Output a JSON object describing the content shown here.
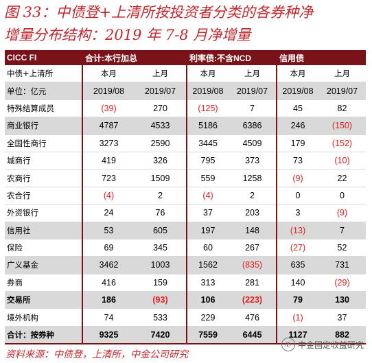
{
  "figure": {
    "title_line1": "图 33：中债登+上清所按投资者分类的各券种净",
    "title_line2": "增量分布结构：2019 年 7-8 月净增量"
  },
  "table": {
    "header": [
      "CICC FI",
      "合计:本行加总",
      "利率债:不含NCD",
      "信用债"
    ],
    "subheader": [
      "中债+上清所",
      "本月",
      "上月",
      "本月",
      "上月",
      "本月",
      "上月"
    ],
    "unit_row": [
      "单位：亿元",
      "2019/08",
      "2019/07",
      "2019/08",
      "2019/07",
      "2019/08",
      "2019/07"
    ],
    "rows": [
      {
        "label": "特殊结算成员",
        "values": [
          "(39)",
          "270",
          "(125)",
          "7",
          "45",
          "82"
        ],
        "style": "plain"
      },
      {
        "label": "商业银行",
        "values": [
          "4787",
          "4533",
          "5186",
          "6386",
          "246",
          "(150)"
        ],
        "style": "gray"
      },
      {
        "label": "全国性商行",
        "values": [
          "3273",
          "2590",
          "3445",
          "4509",
          "179",
          "(152)"
        ],
        "style": "plain"
      },
      {
        "label": "城商行",
        "values": [
          "419",
          "326",
          "795",
          "373",
          "73",
          "(10)"
        ],
        "style": "plain"
      },
      {
        "label": "农商行",
        "values": [
          "723",
          "1509",
          "559",
          "1258",
          "(9)",
          "22"
        ],
        "style": "plain"
      },
      {
        "label": "农合行",
        "values": [
          "(4)",
          "2",
          "(4)",
          "2",
          "0",
          "0"
        ],
        "style": "plain"
      },
      {
        "label": "外资银行",
        "values": [
          "24",
          "76",
          "37",
          "203",
          "3",
          "(9)"
        ],
        "style": "plain"
      },
      {
        "label": "信用社",
        "values": [
          "53",
          "605",
          "197",
          "148",
          "(13)",
          "7"
        ],
        "style": "gray"
      },
      {
        "label": "保险",
        "values": [
          "69",
          "345",
          "60",
          "267",
          "(27)",
          "52"
        ],
        "style": "plain"
      },
      {
        "label": "广义基金",
        "values": [
          "3462",
          "1003",
          "1562",
          "(835)",
          "635",
          "731"
        ],
        "style": "gray"
      },
      {
        "label": "券商",
        "values": [
          "416",
          "159",
          "313",
          "281",
          "140",
          "(29)"
        ],
        "style": "plain"
      },
      {
        "label": "交易所",
        "values": [
          "186",
          "(93)",
          "106",
          "(223)",
          "79",
          "130"
        ],
        "style": "gray-bold"
      },
      {
        "label": "境外机构",
        "values": [
          "74",
          "533",
          "229",
          "476",
          "(1)",
          "37"
        ],
        "style": "plain"
      },
      {
        "label": "合计：按券种",
        "values": [
          "9325",
          "7420",
          "7559",
          "6445",
          "1127",
          "882"
        ],
        "style": "total"
      }
    ]
  },
  "footer": {
    "source": "资料来源：中债登，上清所，中金公司研究",
    "watermark": "中金固定收益研究",
    "watermark_icon": "wechat-icon"
  },
  "colors": {
    "title": "#c0282d",
    "header_bg": "#7a1319",
    "negative": "#e02020",
    "highlight_row": "#d9d9d9"
  }
}
